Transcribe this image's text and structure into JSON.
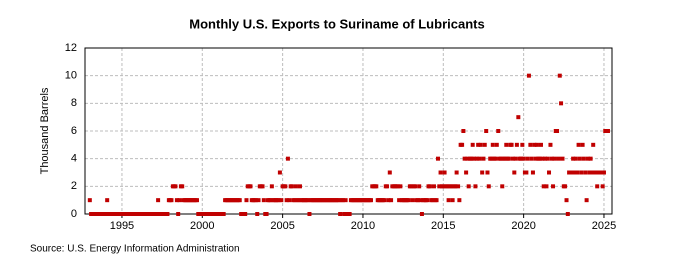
{
  "chart_data": {
    "type": "scatter",
    "title": "Monthly U.S. Exports to Suriname of Lubricants",
    "y_label": "Thousand Barrels",
    "source": "Source: U.S. Energy Information Administration",
    "color": "#c00000",
    "grid": true,
    "xlim": [
      1992.7,
      2025.5
    ],
    "xticks": [
      1995,
      2000,
      2005,
      2010,
      2015,
      2020,
      2025
    ],
    "ylim": [
      0,
      12
    ],
    "yticks": [
      0,
      2,
      4,
      6,
      8,
      10,
      12
    ],
    "x": [
      1993,
      1993.08,
      1993.17,
      1993.25,
      1993.33,
      1993.42,
      1993.5,
      1993.58,
      1993.67,
      1993.75,
      1993.83,
      1993.92,
      1994,
      1994.08,
      1994.17,
      1994.25,
      1994.33,
      1994.42,
      1994.5,
      1994.58,
      1994.67,
      1994.75,
      1994.83,
      1994.92,
      1995,
      1995.08,
      1995.17,
      1995.25,
      1995.33,
      1995.42,
      1995.5,
      1995.58,
      1995.67,
      1995.75,
      1995.83,
      1995.92,
      1996,
      1996.08,
      1996.17,
      1996.25,
      1996.33,
      1996.42,
      1996.5,
      1996.58,
      1996.67,
      1996.75,
      1996.83,
      1996.92,
      1997,
      1997.08,
      1997.17,
      1997.25,
      1997.33,
      1997.42,
      1997.5,
      1997.58,
      1997.67,
      1997.75,
      1997.83,
      1997.92,
      1998,
      1998.08,
      1998.17,
      1998.25,
      1998.33,
      1998.42,
      1998.5,
      1998.58,
      1998.67,
      1998.75,
      1998.83,
      1998.92,
      1999,
      1999.08,
      1999.17,
      1999.25,
      1999.33,
      1999.42,
      1999.5,
      1999.58,
      1999.67,
      1999.75,
      1999.83,
      1999.92,
      2000,
      2000.08,
      2000.17,
      2000.25,
      2000.33,
      2000.42,
      2000.5,
      2000.58,
      2000.67,
      2000.75,
      2000.83,
      2000.92,
      2001,
      2001.08,
      2001.17,
      2001.25,
      2001.33,
      2001.42,
      2001.5,
      2001.58,
      2001.67,
      2001.75,
      2001.83,
      2001.92,
      2002,
      2002.08,
      2002.17,
      2002.25,
      2002.33,
      2002.42,
      2002.5,
      2002.58,
      2002.67,
      2002.75,
      2002.83,
      2002.92,
      2003,
      2003.08,
      2003.17,
      2003.25,
      2003.33,
      2003.42,
      2003.5,
      2003.58,
      2003.67,
      2003.75,
      2003.83,
      2003.92,
      2004,
      2004.08,
      2004.17,
      2004.25,
      2004.33,
      2004.42,
      2004.5,
      2004.58,
      2004.67,
      2004.75,
      2004.83,
      2004.92,
      2005,
      2005.08,
      2005.17,
      2005.25,
      2005.33,
      2005.42,
      2005.5,
      2005.58,
      2005.67,
      2005.75,
      2005.83,
      2005.92,
      2006,
      2006.08,
      2006.17,
      2006.25,
      2006.33,
      2006.42,
      2006.5,
      2006.58,
      2006.67,
      2006.75,
      2006.83,
      2006.92,
      2007,
      2007.08,
      2007.17,
      2007.25,
      2007.33,
      2007.42,
      2007.5,
      2007.58,
      2007.67,
      2007.75,
      2007.83,
      2007.92,
      2008,
      2008.08,
      2008.17,
      2008.25,
      2008.33,
      2008.42,
      2008.5,
      2008.58,
      2008.67,
      2008.75,
      2008.83,
      2008.92,
      2009,
      2009.08,
      2009.17,
      2009.25,
      2009.33,
      2009.42,
      2009.5,
      2009.58,
      2009.67,
      2009.75,
      2009.83,
      2009.92,
      2010,
      2010.08,
      2010.17,
      2010.25,
      2010.33,
      2010.42,
      2010.5,
      2010.58,
      2010.67,
      2010.75,
      2010.83,
      2010.92,
      2011,
      2011.08,
      2011.17,
      2011.25,
      2011.33,
      2011.42,
      2011.5,
      2011.58,
      2011.67,
      2011.75,
      2011.83,
      2011.92,
      2012,
      2012.08,
      2012.17,
      2012.25,
      2012.33,
      2012.42,
      2012.5,
      2012.58,
      2012.67,
      2012.75,
      2012.83,
      2012.92,
      2013,
      2013.08,
      2013.17,
      2013.25,
      2013.33,
      2013.42,
      2013.5,
      2013.58,
      2013.67,
      2013.75,
      2013.83,
      2013.92,
      2014,
      2014.08,
      2014.17,
      2014.25,
      2014.33,
      2014.42,
      2014.5,
      2014.58,
      2014.67,
      2014.75,
      2014.83,
      2014.92,
      2015,
      2015.08,
      2015.17,
      2015.25,
      2015.33,
      2015.42,
      2015.5,
      2015.58,
      2015.67,
      2015.75,
      2015.83,
      2015.92,
      2016,
      2016.08,
      2016.17,
      2016.25,
      2016.33,
      2016.42,
      2016.5,
      2016.58,
      2016.67,
      2016.75,
      2016.83,
      2016.92,
      2017,
      2017.08,
      2017.17,
      2017.25,
      2017.33,
      2017.42,
      2017.5,
      2017.58,
      2017.67,
      2017.75,
      2017.83,
      2017.92,
      2018,
      2018.08,
      2018.17,
      2018.25,
      2018.33,
      2018.42,
      2018.5,
      2018.58,
      2018.67,
      2018.75,
      2018.83,
      2018.92,
      2019,
      2019.08,
      2019.17,
      2019.25,
      2019.33,
      2019.42,
      2019.5,
      2019.58,
      2019.67,
      2019.75,
      2019.83,
      2019.92,
      2020,
      2020.08,
      2020.17,
      2020.25,
      2020.33,
      2020.42,
      2020.5,
      2020.58,
      2020.67,
      2020.75,
      2020.83,
      2020.92,
      2021,
      2021.08,
      2021.17,
      2021.25,
      2021.33,
      2021.42,
      2021.5,
      2021.58,
      2021.67,
      2021.75,
      2021.83,
      2021.92,
      2022,
      2022.08,
      2022.17,
      2022.25,
      2022.33,
      2022.42,
      2022.5,
      2022.58,
      2022.67,
      2022.75,
      2022.83,
      2022.92,
      2023,
      2023.08,
      2023.17,
      2023.25,
      2023.33,
      2023.42,
      2023.5,
      2023.58,
      2023.67,
      2023.75,
      2023.83,
      2023.92,
      2024,
      2024.08,
      2024.17,
      2024.25,
      2024.33,
      2024.42,
      2024.5,
      2024.58,
      2024.67,
      2024.75,
      2024.83,
      2024.92,
      2025,
      2025.08,
      2025.17,
      2025.25
    ],
    "values": [
      1,
      0,
      0,
      0,
      0,
      0,
      0,
      0,
      0,
      0,
      0,
      0,
      0,
      1,
      0,
      0,
      0,
      0,
      0,
      0,
      0,
      0,
      0,
      0,
      0,
      0,
      0,
      0,
      0,
      0,
      0,
      0,
      0,
      0,
      0,
      0,
      0,
      0,
      0,
      0,
      0,
      0,
      0,
      0,
      0,
      0,
      0,
      0,
      0,
      0,
      0,
      1,
      0,
      0,
      0,
      0,
      0,
      0,
      0,
      1,
      1,
      1,
      2,
      2,
      2,
      1,
      0,
      1,
      2,
      2,
      1,
      1,
      1,
      1,
      1,
      1,
      1,
      1,
      1,
      1,
      1,
      0,
      0,
      0,
      0,
      0,
      0,
      0,
      0,
      0,
      0,
      0,
      0,
      0,
      0,
      0,
      0,
      0,
      0,
      0,
      0,
      1,
      1,
      1,
      1,
      1,
      1,
      1,
      1,
      1,
      1,
      1,
      1,
      0,
      0,
      0,
      0,
      1,
      2,
      2,
      2,
      1,
      1,
      1,
      1,
      0,
      1,
      2,
      2,
      2,
      1,
      0,
      0,
      1,
      1,
      1,
      2,
      1,
      1,
      1,
      1,
      1,
      3,
      1,
      2,
      2,
      2,
      1,
      4,
      1,
      2,
      2,
      1,
      1,
      2,
      1,
      1,
      2,
      1,
      1,
      1,
      1,
      1,
      1,
      0,
      1,
      1,
      1,
      1,
      1,
      1,
      1,
      1,
      1,
      1,
      1,
      1,
      1,
      1,
      1,
      1,
      1,
      1,
      1,
      1,
      1,
      1,
      0,
      1,
      1,
      0,
      1,
      0,
      0,
      0,
      1,
      1,
      1,
      1,
      1,
      1,
      1,
      1,
      1,
      1,
      1,
      1,
      1,
      1,
      1,
      1,
      2,
      2,
      2,
      2,
      1,
      1,
      1,
      1,
      1,
      1,
      2,
      2,
      1,
      3,
      1,
      2,
      2,
      2,
      2,
      2,
      1,
      2,
      1,
      1,
      1,
      1,
      1,
      1,
      2,
      2,
      1,
      2,
      2,
      1,
      1,
      2,
      1,
      0,
      1,
      1,
      1,
      1,
      2,
      2,
      1,
      1,
      2,
      1,
      1,
      4,
      2,
      3,
      2,
      2,
      3,
      2,
      2,
      1,
      2,
      2,
      1,
      2,
      2,
      3,
      2,
      1,
      5,
      5,
      6,
      4,
      3,
      4,
      2,
      4,
      4,
      5,
      4,
      2,
      4,
      5,
      4,
      5,
      3,
      4,
      5,
      6,
      3,
      2,
      4,
      4,
      5,
      4,
      4,
      5,
      6,
      4,
      4,
      2,
      4,
      4,
      5,
      4,
      4,
      5,
      5,
      4,
      3,
      4,
      5,
      7,
      4,
      4,
      5,
      4,
      3,
      3,
      4,
      10,
      5,
      4,
      3,
      5,
      4,
      5,
      4,
      4,
      5,
      4,
      2,
      4,
      2,
      4,
      3,
      5,
      4,
      2,
      4,
      6,
      6,
      4,
      10,
      8,
      4,
      2,
      2,
      1,
      0,
      3,
      3,
      3,
      4,
      3,
      4,
      3,
      5,
      4,
      3,
      5,
      4,
      3,
      1,
      4,
      3,
      4,
      3,
      5,
      3,
      3,
      2,
      3,
      3,
      3,
      2,
      3,
      6,
      6,
      6
    ]
  }
}
